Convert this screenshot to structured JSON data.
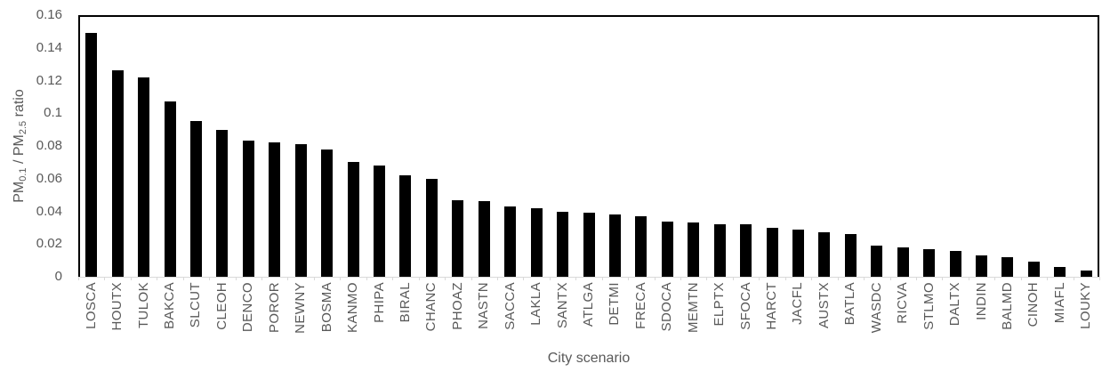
{
  "style": {
    "bar_color": "#000000",
    "axis_text_color": "#595959",
    "plot_border_color": "#000000",
    "axis_line_color": "#D9D9D9",
    "background_color": "#FFFFFF"
  },
  "chart_data": {
    "type": "bar",
    "title": "",
    "xlabel": "City scenario",
    "ylabel": "PM0.1 / PM2.5 ratio",
    "ylabel_rich": [
      {
        "text": "PM",
        "sub": false
      },
      {
        "text": "0.1",
        "sub": true
      },
      {
        "text": " / PM",
        "sub": false
      },
      {
        "text": "2.5",
        "sub": true
      },
      {
        "text": " ratio",
        "sub": false
      }
    ],
    "ylim": [
      0,
      0.16
    ],
    "grid": false,
    "legend_position": "none",
    "bar_fill": "solid-black",
    "yticks": [
      {
        "value": 0,
        "label": "0"
      },
      {
        "value": 0.02,
        "label": "0.02"
      },
      {
        "value": 0.04,
        "label": "0.04"
      },
      {
        "value": 0.06,
        "label": "0.06"
      },
      {
        "value": 0.08,
        "label": "0.08"
      },
      {
        "value": 0.1,
        "label": "0.1"
      },
      {
        "value": 0.12,
        "label": "0.12"
      },
      {
        "value": 0.14,
        "label": "0.14"
      },
      {
        "value": 0.16,
        "label": "0.16"
      }
    ],
    "categories": [
      "LOSCA",
      "HOUTX",
      "TULOK",
      "BAKCA",
      "SLCUT",
      "CLEOH",
      "DENCO",
      "POROR",
      "NEWNY",
      "BOSMA",
      "KANMO",
      "PHIPA",
      "BIRAL",
      "CHANC",
      "PHOAZ",
      "NASTN",
      "SACCA",
      "LAKLA",
      "SANTX",
      "ATLGA",
      "DETMI",
      "FRECA",
      "SDOCA",
      "MEMTN",
      "ELPTX",
      "SFOCA",
      "HARCT",
      "JACFL",
      "AUSTX",
      "BATLA",
      "WASDC",
      "RICVA",
      "STLMO",
      "DALTX",
      "INDIN",
      "BALMD",
      "CINOH",
      "MIAFL",
      "LOUKY"
    ],
    "values": [
      0.149,
      0.126,
      0.122,
      0.107,
      0.095,
      0.09,
      0.083,
      0.082,
      0.081,
      0.078,
      0.07,
      0.068,
      0.062,
      0.06,
      0.047,
      0.046,
      0.043,
      0.042,
      0.04,
      0.039,
      0.038,
      0.037,
      0.034,
      0.033,
      0.032,
      0.032,
      0.03,
      0.029,
      0.027,
      0.026,
      0.019,
      0.018,
      0.017,
      0.016,
      0.013,
      0.012,
      0.009,
      0.006,
      0.004
    ]
  }
}
